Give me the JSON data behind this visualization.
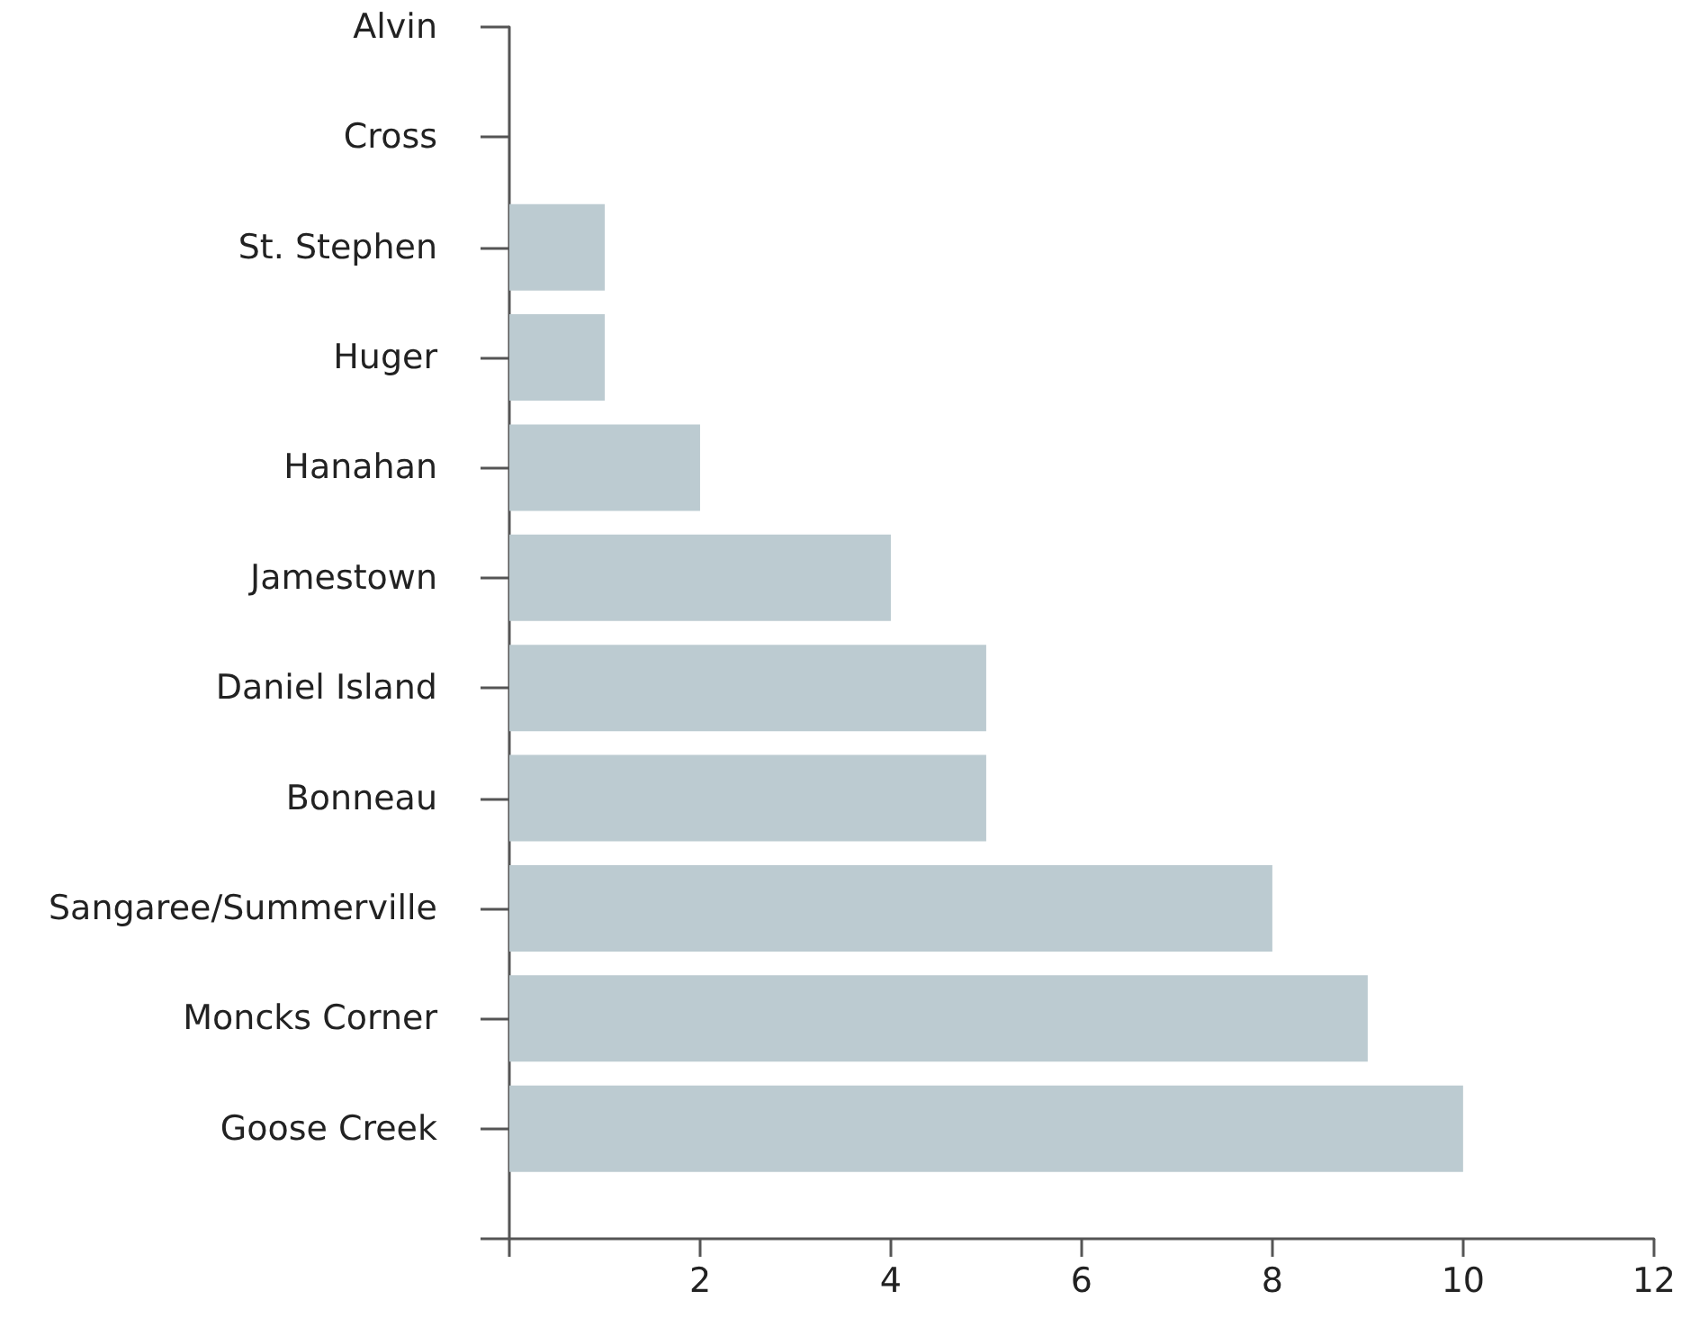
{
  "chart_data": {
    "type": "bar",
    "orientation": "horizontal",
    "categories": [
      "Alvin",
      "Cross",
      "St. Stephen",
      "Huger",
      "Hanahan",
      "Jamestown",
      "Daniel Island",
      "Bonneau",
      "Sangaree/Summerville",
      "Moncks Corner",
      "Goose Creek"
    ],
    "values": [
      0,
      0,
      1,
      1,
      2,
      4,
      5,
      5,
      8,
      9,
      10
    ],
    "color": "#bccbd1",
    "xlim": [
      0,
      12
    ],
    "xticks": [
      {
        "value": 0,
        "label": null
      },
      2,
      4,
      6,
      8,
      10,
      12
    ],
    "grid": false
  }
}
